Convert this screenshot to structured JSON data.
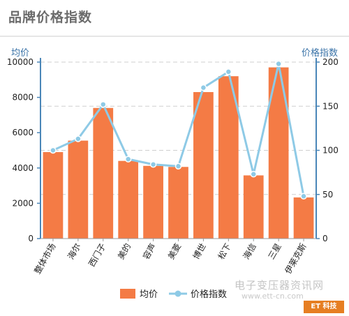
{
  "page_title": "品牌价格指数",
  "watermark": {
    "text": "电子变压器资讯网",
    "url": "www.ett-cn.com",
    "logo_text": "ET 科技"
  },
  "chart_data": {
    "type": "bar",
    "categories": [
      "整体市场",
      "海尔",
      "西门子",
      "美的",
      "容声",
      "美菱",
      "博世",
      "松下",
      "海信",
      "三星",
      "伊莱克斯"
    ],
    "series": [
      {
        "name": "均价",
        "type": "bar",
        "axis": "left",
        "color": "#f47b45",
        "values": [
          4900,
          5550,
          7400,
          4400,
          4120,
          4060,
          8300,
          9200,
          3580,
          9700,
          2330
        ]
      },
      {
        "name": "价格指数",
        "type": "line",
        "axis": "right",
        "color": "#8ecae6",
        "values": [
          100,
          113,
          152,
          90,
          84,
          82,
          171,
          189,
          73,
          198,
          48
        ]
      }
    ],
    "left_axis": {
      "label": "均价",
      "range": [
        0,
        10000
      ],
      "ticks": [
        "0",
        "2000",
        "4000",
        "6000",
        "8000",
        "10000"
      ]
    },
    "right_axis": {
      "label": "价格指数",
      "range": [
        0,
        200
      ],
      "ticks": [
        "0",
        "50",
        "100",
        "150",
        "200"
      ]
    },
    "grid": true,
    "legend_position": "bottom"
  }
}
